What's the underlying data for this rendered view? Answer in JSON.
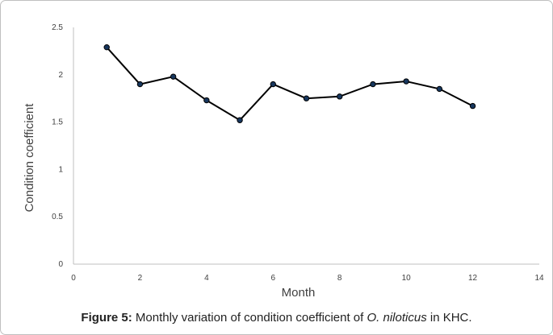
{
  "chart_data": {
    "type": "line",
    "xlabel": "Month",
    "ylabel": "Condition coefficient",
    "xlim": [
      0,
      14
    ],
    "ylim": [
      0,
      2.5
    ],
    "x_ticks": [
      0,
      2,
      4,
      6,
      8,
      10,
      12,
      14
    ],
    "y_ticks": [
      {
        "value": 0,
        "label": "0"
      },
      {
        "value": 0.5,
        "label": "0.5"
      },
      {
        "value": 1,
        "label": "1"
      },
      {
        "value": 1.5,
        "label": "1.5"
      },
      {
        "value": 2,
        "label": "2"
      },
      {
        "value": 2.5,
        "label": "2.5"
      }
    ],
    "grid": false,
    "series": [
      {
        "x": [
          1,
          2,
          3,
          4,
          5,
          6,
          7,
          8,
          9,
          10,
          11,
          12
        ],
        "values": [
          2.29,
          1.9,
          1.98,
          1.73,
          1.52,
          1.9,
          1.75,
          1.77,
          1.9,
          1.93,
          1.85,
          1.67
        ]
      }
    ],
    "colors": {
      "line": "#000000",
      "marker": "#17375e",
      "axis": "#bfbfbf"
    }
  },
  "caption": {
    "label": "Figure 5:",
    "text_before": " Monthly variation of condition coefficient of ",
    "species": "O. niloticus",
    "text_after": " in KHC."
  }
}
